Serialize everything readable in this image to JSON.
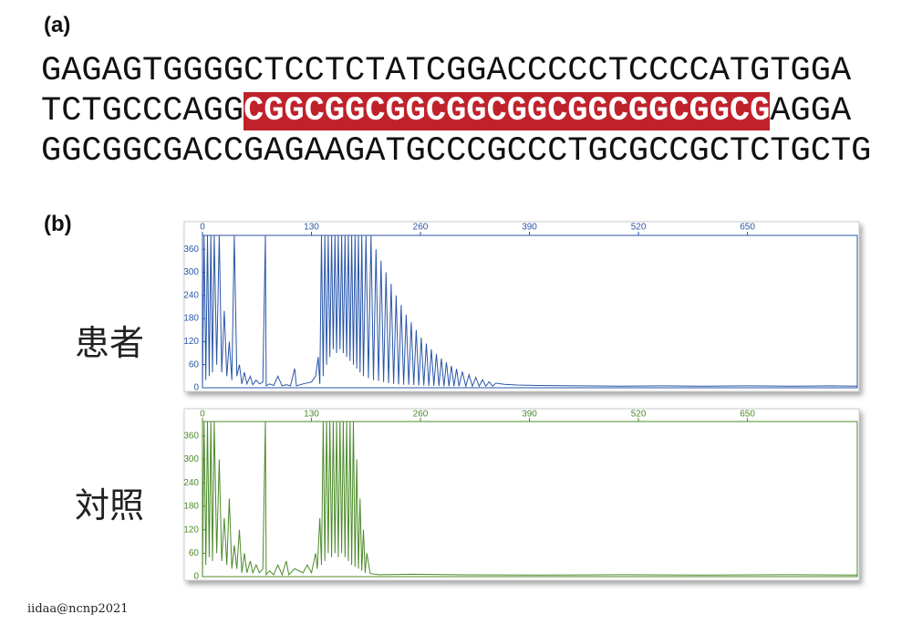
{
  "panel_a": "(a)",
  "panel_b": "(b)",
  "sequence": {
    "line1": "GAGAGTGGGGCTCCTCTATCGGACCCCCTCCCCATGTGGA",
    "line2_start": "TCTGCCCAGG",
    "line2_repeat": "CGGCGGCGGCGGCGGCGGCGGCGGCG",
    "line2_end": "AGGA",
    "line3": "GGCGGCGACCGAGAAGATGCCCGCCCTGCGCCGCTCTGCTG"
  },
  "credit": "iidaa@ncnp2021",
  "chart_data": [
    {
      "type": "line",
      "label": "患者",
      "color": "#2a56a8",
      "xlim": [
        0,
        781
      ],
      "ylim": [
        0,
        396
      ],
      "xticks": [
        0,
        130,
        260,
        390,
        520,
        650
      ],
      "yticks": [
        0,
        60,
        120,
        180,
        240,
        300,
        360
      ],
      "x": [
        0,
        2,
        4,
        6,
        8,
        10,
        12,
        14,
        17,
        20,
        23,
        26,
        29,
        32,
        35,
        38,
        41,
        44,
        47,
        50,
        53,
        57,
        60,
        64,
        68,
        72,
        75,
        76,
        80,
        85,
        90,
        95,
        100,
        105,
        110,
        112,
        120,
        130,
        135,
        138,
        140,
        142,
        144,
        146,
        148,
        150,
        152,
        154,
        156,
        158,
        160,
        162,
        164,
        166,
        168,
        170,
        172,
        174,
        176,
        178,
        180,
        182,
        184,
        186,
        188,
        190,
        192,
        195,
        198,
        201,
        204,
        207,
        210,
        213,
        216,
        219,
        222,
        225,
        228,
        231,
        234,
        237,
        240,
        243,
        246,
        249,
        252,
        255,
        258,
        261,
        264,
        267,
        270,
        273,
        276,
        279,
        282,
        285,
        288,
        291,
        294,
        297,
        300,
        303,
        306,
        310,
        314,
        318,
        322,
        326,
        330,
        334,
        338,
        342,
        346,
        350,
        360,
        375,
        400,
        450,
        500,
        550,
        600,
        650,
        700,
        750,
        781
      ],
      "values": [
        0,
        396,
        20,
        396,
        30,
        396,
        40,
        396,
        60,
        396,
        40,
        200,
        30,
        120,
        20,
        396,
        30,
        60,
        10,
        40,
        10,
        30,
        8,
        20,
        10,
        15,
        396,
        5,
        10,
        6,
        30,
        5,
        8,
        5,
        50,
        5,
        10,
        15,
        30,
        80,
        10,
        396,
        30,
        396,
        60,
        396,
        80,
        396,
        100,
        396,
        90,
        396,
        100,
        396,
        90,
        396,
        80,
        396,
        70,
        396,
        60,
        396,
        50,
        396,
        40,
        396,
        30,
        396,
        25,
        396,
        20,
        360,
        18,
        330,
        15,
        300,
        12,
        270,
        10,
        240,
        9,
        215,
        8,
        190,
        8,
        170,
        7,
        150,
        6,
        130,
        6,
        115,
        5,
        100,
        5,
        88,
        5,
        76,
        4,
        66,
        4,
        57,
        4,
        49,
        4,
        42,
        4,
        34,
        4,
        27,
        4,
        21,
        4,
        16,
        4,
        12,
        9,
        7,
        6,
        5,
        4,
        5,
        4,
        5,
        4,
        5,
        4
      ]
    },
    {
      "type": "line",
      "label": "対照",
      "color": "#4c8a2a",
      "xlim": [
        0,
        781
      ],
      "ylim": [
        0,
        397
      ],
      "xticks": [
        0,
        130,
        260,
        390,
        520,
        650
      ],
      "yticks": [
        0,
        60,
        120,
        180,
        240,
        300,
        360
      ],
      "x": [
        0,
        2,
        4,
        6,
        8,
        10,
        12,
        14,
        17,
        20,
        23,
        26,
        29,
        32,
        35,
        38,
        41,
        44,
        47,
        50,
        53,
        57,
        60,
        64,
        68,
        72,
        75,
        76,
        80,
        85,
        90,
        95,
        100,
        103,
        110,
        120,
        125,
        130,
        135,
        137,
        140,
        142,
        144,
        146,
        148,
        150,
        152,
        154,
        156,
        158,
        160,
        162,
        164,
        166,
        168,
        170,
        172,
        174,
        176,
        178,
        180,
        182,
        184,
        186,
        188,
        190,
        192,
        194,
        196,
        200,
        210,
        250,
        300,
        400,
        500,
        600,
        700,
        781
      ],
      "values": [
        0,
        397,
        30,
        397,
        50,
        397,
        40,
        397,
        60,
        300,
        40,
        150,
        30,
        200,
        20,
        80,
        20,
        120,
        10,
        60,
        10,
        40,
        10,
        30,
        10,
        20,
        397,
        5,
        15,
        5,
        30,
        5,
        40,
        5,
        20,
        10,
        30,
        10,
        60,
        20,
        150,
        30,
        397,
        40,
        397,
        60,
        397,
        50,
        397,
        60,
        397,
        50,
        397,
        60,
        397,
        50,
        397,
        40,
        397,
        30,
        397,
        25,
        300,
        20,
        200,
        15,
        120,
        10,
        60,
        8,
        5,
        6,
        5,
        4,
        5,
        4,
        5,
        4
      ]
    }
  ]
}
